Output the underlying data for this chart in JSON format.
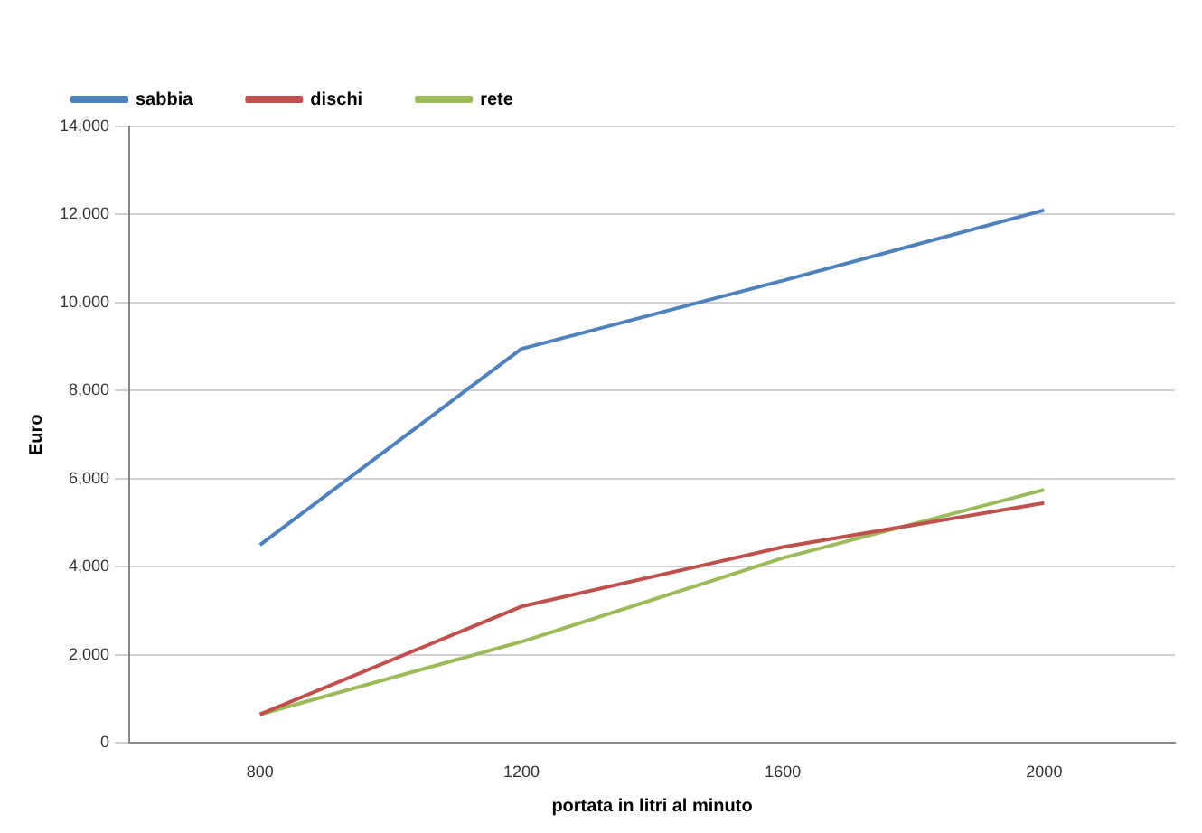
{
  "chart_data": {
    "type": "line",
    "xlabel": "portata in litri al minuto",
    "ylabel": "Euro",
    "categories": [
      "800",
      "1200",
      "1600",
      "2000"
    ],
    "series": [
      {
        "name": "sabbia",
        "color": "#4f81bd",
        "values": [
          4500,
          8950,
          10500,
          12100
        ]
      },
      {
        "name": "dischi",
        "color": "#c0504d",
        "values": [
          650,
          3100,
          4450,
          5450
        ]
      },
      {
        "name": "rete",
        "color": "#9bbb59",
        "values": [
          650,
          2300,
          4200,
          5750
        ]
      }
    ],
    "ylim": [
      0,
      14000
    ],
    "yticks": [
      {
        "value": 0,
        "label": "0"
      },
      {
        "value": 2000,
        "label": "2,000"
      },
      {
        "value": 4000,
        "label": "4,000"
      },
      {
        "value": 6000,
        "label": "6,000"
      },
      {
        "value": 8000,
        "label": "8,000"
      },
      {
        "value": 10000,
        "label": "10,000"
      },
      {
        "value": 12000,
        "label": "12,000"
      },
      {
        "value": 14000,
        "label": "14,000"
      }
    ],
    "grid": "y",
    "legend": "top left",
    "marker": "none",
    "line_style": "solid"
  }
}
